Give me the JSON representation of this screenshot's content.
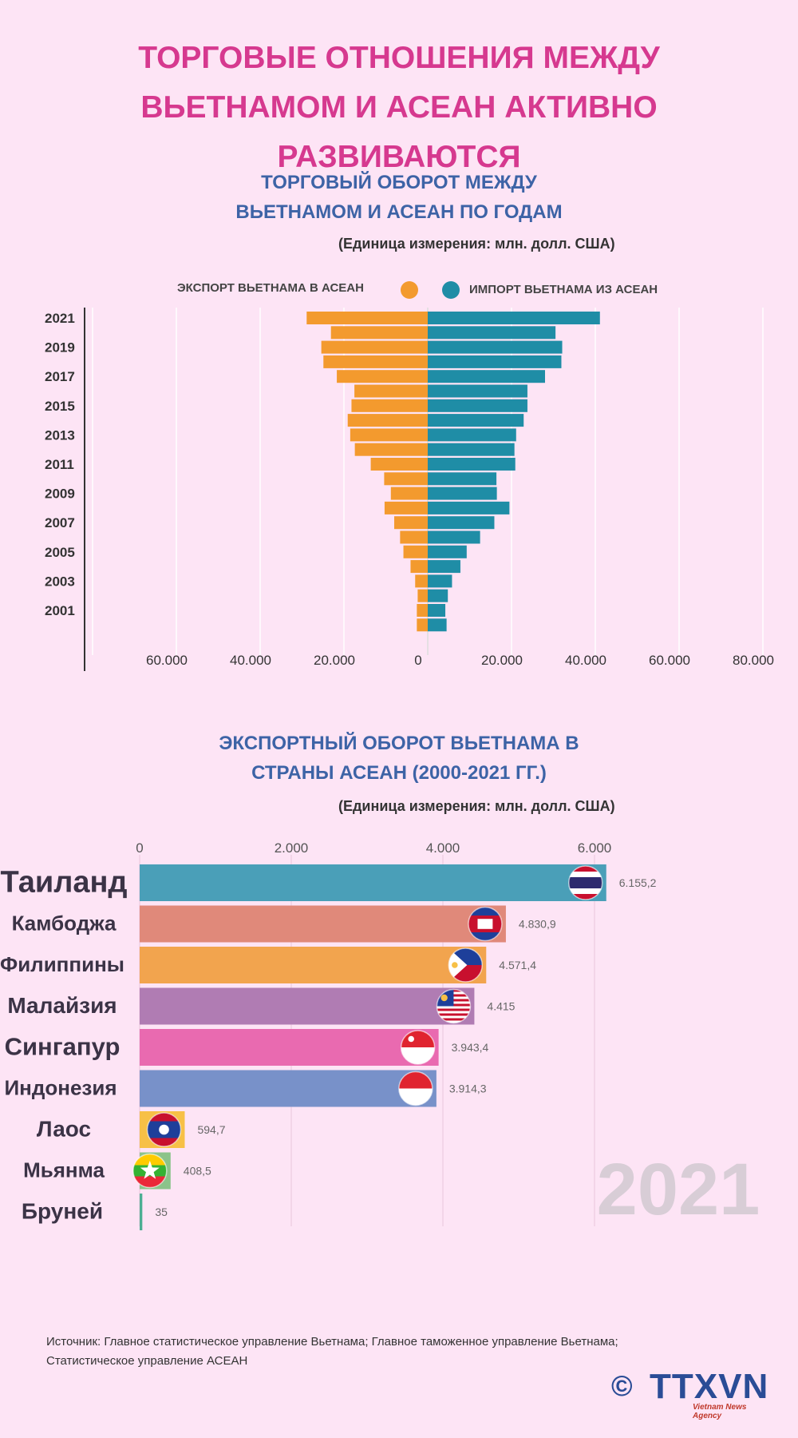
{
  "title": "ТОРГОВЫЕ ОТНОШЕНИЯ МЕЖДУ ВЬЕТНАМОМ И АСЕАН АКТИВНО РАЗВИВАЮТСЯ",
  "section1": {
    "title": "ТОРГОВЫЙ ОБОРОТ МЕЖДУ ВЬЕТНАМОМ И АСЕАН ПО ГОДАМ",
    "unit": "(Единица измерения: млн. долл. США)",
    "legend_export": "ЭКСПОРТ ВЬЕТНАМА В АСЕАН",
    "legend_import": "ИМПОРТ ВЬЕТНАМА ИЗ АСЕАН"
  },
  "section2": {
    "title": "ЭКСПОРТНЫЙ ОБОРОТ ВЬЕТНАМА В СТРАНЫ АСЕАН (2000-2021 ГГ.)",
    "unit": "(Единица измерения: млн. долл. США)",
    "year_watermark": "2021"
  },
  "source": "Источник: Главное статистическое управление Вьетнама; Главное таможенное управление Вьетнама; Статистическое управление АСЕАН",
  "logo": {
    "copyright": "©",
    "brand": "TTXVN",
    "subtitle": "Vietnam News Agency"
  },
  "colors": {
    "export": "#f39a2e",
    "import": "#1f8da6",
    "title": "#d6398f",
    "heading": "#3d63a6"
  },
  "chart_data": [
    {
      "type": "bar",
      "orientation": "horizontal-diverging",
      "categories": [
        "2021",
        "2020",
        "2019",
        "2018",
        "2017",
        "2016",
        "2015",
        "2014",
        "2013",
        "2012",
        "2011",
        "2010",
        "2009",
        "2008",
        "2007",
        "2006",
        "2005",
        "2004",
        "2003",
        "2002",
        "2001",
        "2000"
      ],
      "year_labels": [
        "2021",
        "2019",
        "2017",
        "2015",
        "2013",
        "2011",
        "2009",
        "2007",
        "2005",
        "2003",
        "2001"
      ],
      "series": [
        {
          "name": "ЭКСПОРТ ВЬЕТНАМА В АСЕАН",
          "color": "#f39a2e",
          "direction": "left",
          "values": [
            28900,
            23100,
            25400,
            24900,
            21700,
            17500,
            18200,
            19100,
            18500,
            17400,
            13600,
            10400,
            8800,
            10300,
            8000,
            6600,
            5800,
            4100,
            3000,
            2400,
            2600,
            2600
          ]
        },
        {
          "name": "ИМПОРТ ВЬЕТНАМА ИЗ АСЕАН",
          "color": "#1f8da6",
          "direction": "right",
          "values": [
            41100,
            30500,
            32100,
            31900,
            28000,
            23800,
            23800,
            22900,
            21100,
            20700,
            20900,
            16400,
            16500,
            19500,
            15900,
            12500,
            9300,
            7800,
            5800,
            4800,
            4200,
            4500
          ]
        }
      ],
      "xticks": [
        "60.000",
        "40.000",
        "20.000",
        "0",
        "20.000",
        "40.000",
        "60.000",
        "80.000"
      ],
      "xlim": [
        -80000,
        80000
      ],
      "grid": true,
      "legend": "top"
    },
    {
      "type": "bar",
      "orientation": "horizontal",
      "categories": [
        "Таиланд",
        "Камбоджа",
        "Филиппины",
        "Малайзия",
        "Сингапур",
        "Индонезия",
        "Лаос",
        "Мьянма",
        "Бруней"
      ],
      "values": [
        6155.2,
        4830.9,
        4571.4,
        4415,
        3943.4,
        3914.3,
        594.7,
        408.5,
        35
      ],
      "value_labels": [
        "6.155,2",
        "4.830,9",
        "4.571,4",
        "4.415",
        "3.943,4",
        "3.914,3",
        "594,7",
        "408,5",
        "35"
      ],
      "colors": [
        "#4a9fb8",
        "#e0897a",
        "#f2a44e",
        "#b07cb3",
        "#e96ab0",
        "#7891c9",
        "#f7c046",
        "#8bc38a",
        "#4cae93"
      ],
      "flags": [
        "thailand",
        "cambodia",
        "philippines",
        "malaysia",
        "singapore",
        "indonesia",
        "laos",
        "myanmar",
        "brunei"
      ],
      "xticks": [
        "0",
        "2.000",
        "4.000",
        "6.000"
      ],
      "xlim": [
        0,
        6300
      ],
      "grid": true
    }
  ]
}
